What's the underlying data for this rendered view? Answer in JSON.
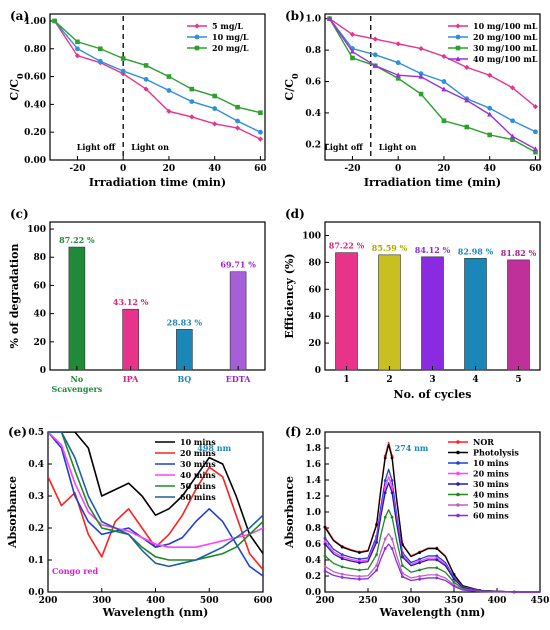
{
  "chart_data": [
    {
      "type": "line",
      "panel_label": "(a)",
      "xlabel": "Irradiation time (min)",
      "ylabel": "C/C0",
      "xlim": [
        -32,
        62
      ],
      "ylim": [
        0,
        1.05
      ],
      "xticks": [
        -20,
        0,
        20,
        40,
        60
      ],
      "yticks": [
        0.0,
        0.2,
        0.4,
        0.6,
        0.8,
        1.0
      ],
      "x": [
        -30,
        -20,
        -10,
        0,
        10,
        20,
        30,
        40,
        50,
        60
      ],
      "divider_x": 0,
      "annotations": [
        "Light off",
        "Light on"
      ],
      "legend_position": "top-right",
      "series": [
        {
          "name": "5 mg/L",
          "color": "#e8338a",
          "values": [
            1.0,
            0.75,
            0.7,
            0.62,
            0.51,
            0.35,
            0.31,
            0.26,
            0.23,
            0.15
          ]
        },
        {
          "name": "10 mg/L",
          "color": "#2f8fd8",
          "values": [
            1.0,
            0.8,
            0.71,
            0.64,
            0.58,
            0.5,
            0.42,
            0.37,
            0.28,
            0.2
          ]
        },
        {
          "name": "20 mg/L",
          "color": "#2ca02c",
          "values": [
            1.0,
            0.85,
            0.8,
            0.73,
            0.68,
            0.6,
            0.51,
            0.46,
            0.38,
            0.34
          ]
        }
      ]
    },
    {
      "type": "line",
      "panel_label": "(b)",
      "xlabel": "Irradiation time (min)",
      "ylabel": "C/C0",
      "xlim": [
        -32,
        62
      ],
      "ylim": [
        0.1,
        1.03
      ],
      "xticks": [
        -20,
        0,
        20,
        40,
        60
      ],
      "yticks": [
        0.2,
        0.4,
        0.6,
        0.8,
        1.0
      ],
      "x": [
        -30,
        -20,
        -10,
        0,
        10,
        20,
        30,
        40,
        50,
        60
      ],
      "divider_x": -12,
      "annotations": [
        "Light off",
        "Light on"
      ],
      "legend_position": "top-right",
      "series": [
        {
          "name": "10 mg/100 mL",
          "color": "#e8338a",
          "values": [
            1.0,
            0.9,
            0.87,
            0.84,
            0.81,
            0.76,
            0.69,
            0.64,
            0.56,
            0.44
          ]
        },
        {
          "name": "20 mg/100 mL",
          "color": "#2f8fd8",
          "values": [
            1.0,
            0.81,
            0.77,
            0.72,
            0.65,
            0.6,
            0.49,
            0.43,
            0.35,
            0.28
          ]
        },
        {
          "name": "30 mg/100 mL",
          "color": "#2ca02c",
          "values": [
            1.0,
            0.75,
            0.7,
            0.62,
            0.52,
            0.35,
            0.31,
            0.26,
            0.23,
            0.15
          ]
        },
        {
          "name": "40 mg/100 mL",
          "color": "#9b30d9",
          "values": [
            1.0,
            0.79,
            0.7,
            0.64,
            0.63,
            0.55,
            0.48,
            0.39,
            0.25,
            0.17
          ]
        }
      ]
    },
    {
      "type": "bar",
      "panel_label": "(c)",
      "ylabel": "% of degradation",
      "ylim": [
        0,
        105
      ],
      "yticks": [
        0,
        20,
        40,
        60,
        80,
        100
      ],
      "categories": [
        "No Scavengers",
        "IPA",
        "BQ",
        "EDTA"
      ],
      "category_lines": [
        [
          "No",
          "Scavengers"
        ],
        [
          "IPA"
        ],
        [
          "BQ"
        ],
        [
          "EDTA"
        ]
      ],
      "values": [
        87.22,
        43.12,
        28.83,
        69.71
      ],
      "data_labels": [
        "87.22 %",
        "43.12 %",
        "28.83 %",
        "69.71 %"
      ],
      "colors": [
        "#1f8a3a",
        "#e8338a",
        "#1b86b8",
        "#a65fd6"
      ],
      "label_colors": [
        "#1f8a3a",
        "#e0207a",
        "#1b86b8",
        "#a020d0"
      ]
    },
    {
      "type": "bar",
      "panel_label": "(d)",
      "xlabel": "No. of cycles",
      "ylabel": "Efficiency (%)",
      "ylim": [
        0,
        110
      ],
      "yticks": [
        0,
        20,
        40,
        60,
        80,
        100
      ],
      "categories": [
        "1",
        "2",
        "3",
        "4",
        "5"
      ],
      "values": [
        87.22,
        85.59,
        84.12,
        82.98,
        81.82
      ],
      "data_labels": [
        "87.22 %",
        "85.59 %",
        "84.12 %",
        "82.98 %",
        "81.82 %"
      ],
      "colors": [
        "#e8338a",
        "#c8c020",
        "#8a2be2",
        "#1b86b8",
        "#c0309a"
      ],
      "label_colors": [
        "#e0207a",
        "#b0a800",
        "#8a2be2",
        "#1b86b8",
        "#b02090"
      ]
    },
    {
      "type": "line",
      "panel_label": "(e)",
      "xlabel": "Wavelength (nm)",
      "ylabel": "Absorbance",
      "xlim": [
        200,
        600
      ],
      "ylim": [
        0,
        0.5
      ],
      "xticks": [
        200,
        300,
        400,
        500,
        600
      ],
      "yticks": [
        0.0,
        0.1,
        0.2,
        0.3,
        0.4,
        0.5
      ],
      "x": [
        200,
        225,
        250,
        275,
        300,
        325,
        350,
        375,
        400,
        425,
        450,
        475,
        500,
        525,
        550,
        575,
        600
      ],
      "peak_label": "498 nm",
      "dye_label": "Congo red",
      "legend_position": "top-right",
      "series": [
        {
          "name": "10 mins",
          "color": "#000000",
          "values": [
            0.5,
            0.5,
            0.5,
            0.45,
            0.3,
            0.32,
            0.34,
            0.3,
            0.24,
            0.26,
            0.3,
            0.36,
            0.42,
            0.4,
            0.3,
            0.18,
            0.12
          ]
        },
        {
          "name": "20 mins",
          "color": "#ff2020",
          "values": [
            0.36,
            0.27,
            0.31,
            0.18,
            0.11,
            0.22,
            0.26,
            0.2,
            0.14,
            0.18,
            0.24,
            0.32,
            0.39,
            0.36,
            0.24,
            0.12,
            0.07
          ]
        },
        {
          "name": "30 mins",
          "color": "#1f3fd8",
          "values": [
            0.5,
            0.45,
            0.3,
            0.22,
            0.18,
            0.19,
            0.2,
            0.17,
            0.14,
            0.15,
            0.17,
            0.22,
            0.26,
            0.22,
            0.15,
            0.08,
            0.05
          ]
        },
        {
          "name": "40 mins",
          "color": "#ff40ff",
          "values": [
            0.5,
            0.46,
            0.34,
            0.25,
            0.21,
            0.2,
            0.19,
            0.17,
            0.15,
            0.14,
            0.14,
            0.14,
            0.15,
            0.16,
            0.17,
            0.18,
            0.2
          ]
        },
        {
          "name": "50 mins",
          "color": "#1f8a1f",
          "values": [
            0.5,
            0.5,
            0.38,
            0.27,
            0.2,
            0.19,
            0.18,
            0.14,
            0.11,
            0.1,
            0.1,
            0.1,
            0.11,
            0.12,
            0.14,
            0.18,
            0.22
          ]
        },
        {
          "name": "60 mins",
          "color": "#1f5fa8",
          "values": [
            0.5,
            0.5,
            0.42,
            0.3,
            0.22,
            0.2,
            0.18,
            0.13,
            0.09,
            0.08,
            0.09,
            0.1,
            0.12,
            0.14,
            0.17,
            0.2,
            0.24
          ]
        }
      ]
    },
    {
      "type": "line",
      "panel_label": "(f)",
      "xlabel": "Wavelength (nm)",
      "ylabel": "Absorbance",
      "xlim": [
        200,
        450
      ],
      "ylim": [
        0,
        2.0
      ],
      "xticks": [
        200,
        250,
        300,
        350,
        400,
        450
      ],
      "yticks": [
        0.0,
        0.2,
        0.4,
        0.6,
        0.8,
        1.0,
        1.2,
        1.4,
        1.6,
        1.8,
        2.0
      ],
      "x": [
        200,
        210,
        220,
        230,
        240,
        250,
        260,
        265,
        270,
        274,
        278,
        283,
        290,
        300,
        310,
        320,
        330,
        340,
        350,
        360,
        380,
        400,
        420,
        450
      ],
      "peak_label": "274 nm",
      "legend_position": "top-right",
      "series": [
        {
          "name": "NOR",
          "color": "#ff2020",
          "scale": 1.0
        },
        {
          "name": "Photolysis",
          "color": "#000000",
          "scale": 0.985
        },
        {
          "name": "10 mins",
          "color": "#1f3fd8",
          "scale": 0.82
        },
        {
          "name": "20 mins",
          "color": "#ff40ff",
          "scale": 0.77
        },
        {
          "name": "30 mins",
          "color": "#1f1fa8",
          "scale": 0.73
        },
        {
          "name": "40 mins",
          "color": "#1f8a1f",
          "scale": 0.55
        },
        {
          "name": "50 mins",
          "color": "#c060c0",
          "scale": 0.39
        },
        {
          "name": "60 mins",
          "color": "#8a2be2",
          "scale": 0.32
        }
      ],
      "base_profile": [
        0.82,
        0.65,
        0.57,
        0.53,
        0.5,
        0.52,
        0.85,
        1.3,
        1.7,
        1.87,
        1.7,
        1.2,
        0.6,
        0.45,
        0.5,
        0.55,
        0.55,
        0.45,
        0.22,
        0.08,
        0.02,
        0.01,
        0.0,
        0.0
      ]
    }
  ]
}
